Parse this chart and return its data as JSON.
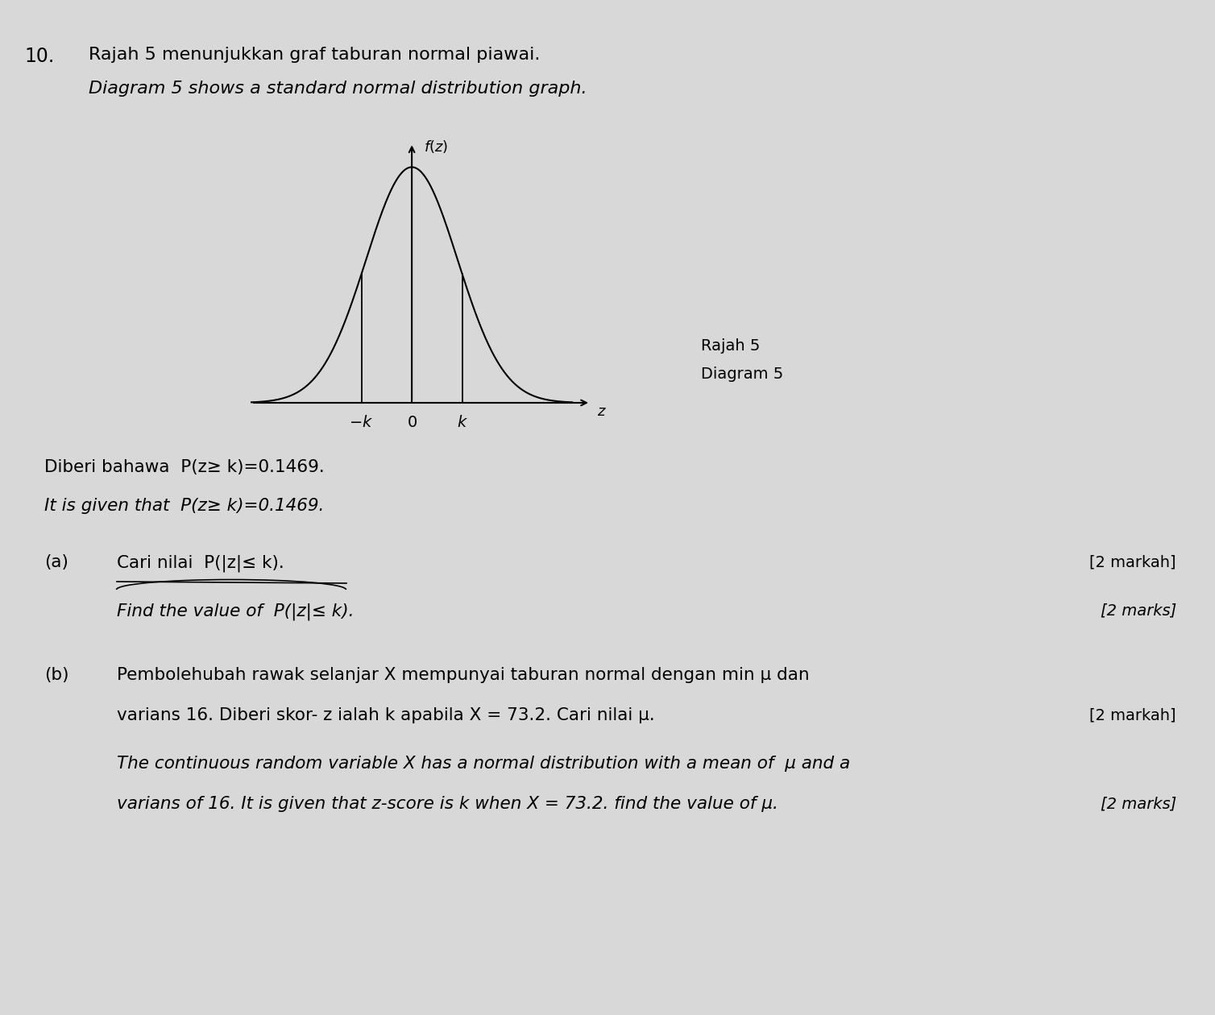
{
  "background_color": "#d8d8d8",
  "page_number": "10.",
  "title_malay": "Rajah 5 menunjukkan graf taburan normal piawai.",
  "title_english": "Diagram 5 shows a standard normal distribution graph.",
  "diagram_label_malay": "Rajah 5",
  "diagram_label_english": "Diagram 5",
  "given_malay": "Diberi bahawa  P(z≥ k)=0.1469.",
  "given_english": "It is given that  P(z≥ k)=0.1469.",
  "part_a_label": "(a)",
  "part_a_malay": "Cari nilai  P(|z|≤ k).",
  "part_a_marks_malay": "[2 markah]",
  "part_a_english": "Find the value of  P(|z|≤ k).",
  "part_a_marks_english": "[2 marks]",
  "part_b_label": "(b)",
  "part_b_malay_line1": "Pembolehubah rawak selanjar X mempunyai taburan normal dengan min μ dan",
  "part_b_malay_line2": "varians 16. Diberi skor- z ialah k apabila X = 73.2. Cari nilai μ.",
  "part_b_marks_malay": "[2 markah]",
  "part_b_english_line1": "The continuous random variable X has a normal distribution with a mean of  μ and a",
  "part_b_english_line2": "varians of 16. It is given that z-score is k when X = 73.2. find the value of μ.",
  "part_b_marks_english": "[2 marks]",
  "font_size_number": 17,
  "font_size_title": 16,
  "font_size_body": 15.5,
  "font_size_marks": 14,
  "font_size_diagram_label": 14,
  "font_size_graph": 13
}
